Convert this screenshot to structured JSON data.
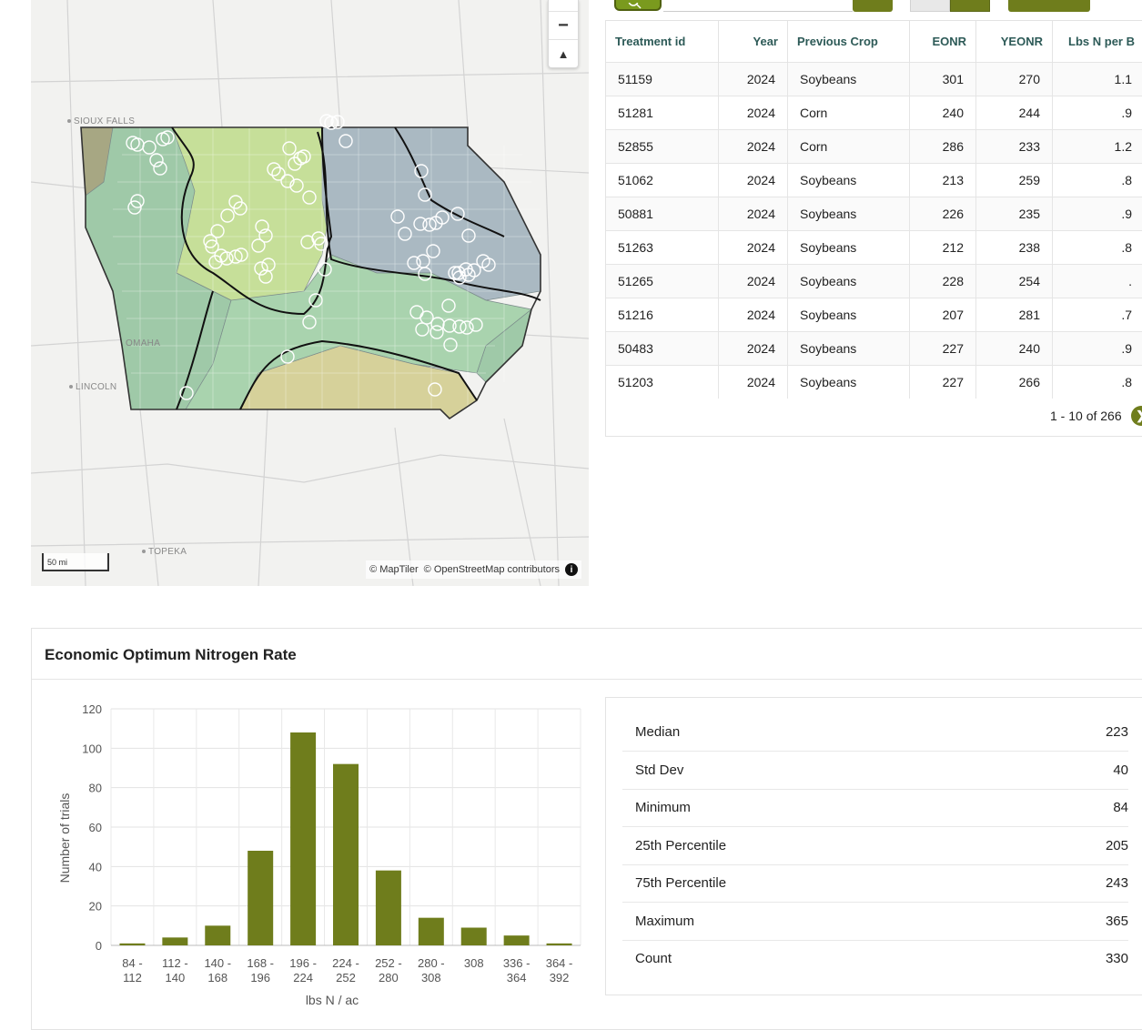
{
  "map": {
    "cities": [
      "SIOUX FALLS",
      "OMAHA",
      "LINCOLN",
      "TOPEKA"
    ],
    "scale_label": "50 mi",
    "attribution": [
      "© MapTiler",
      "© OpenStreetMap contributors"
    ],
    "zoom_out_label": "−",
    "compass_label": "▲",
    "region_colors": [
      "#9fc9a8",
      "#c6df99",
      "#aab9c2",
      "#d6d19a",
      "#a7a783"
    ],
    "marker_color": "#ffffff"
  },
  "table": {
    "columns": [
      "Treatment id",
      "Year",
      "Previous Crop",
      "EONR",
      "YEONR",
      "Lbs N per B"
    ],
    "rows": [
      [
        "51159",
        "2024",
        "Soybeans",
        "301",
        "270",
        "1.1"
      ],
      [
        "51281",
        "2024",
        "Corn",
        "240",
        "244",
        ".9"
      ],
      [
        "52855",
        "2024",
        "Corn",
        "286",
        "233",
        "1.2"
      ],
      [
        "51062",
        "2024",
        "Soybeans",
        "213",
        "259",
        ".8"
      ],
      [
        "50881",
        "2024",
        "Soybeans",
        "226",
        "235",
        ".9"
      ],
      [
        "51263",
        "2024",
        "Soybeans",
        "212",
        "238",
        ".8"
      ],
      [
        "51265",
        "2024",
        "Soybeans",
        "228",
        "254",
        "."
      ],
      [
        "51216",
        "2024",
        "Soybeans",
        "207",
        "281",
        ".7"
      ],
      [
        "50483",
        "2024",
        "Soybeans",
        "227",
        "240",
        ".9"
      ],
      [
        "51203",
        "2024",
        "Soybeans",
        "227",
        "266",
        ".8"
      ]
    ],
    "pagination": "1 - 10 of 266",
    "next_icon": "chevron-right-icon"
  },
  "eonr_panel": {
    "title": "Economic Optimum Nitrogen Rate",
    "stats": [
      {
        "label": "Median",
        "value": "223"
      },
      {
        "label": "Std Dev",
        "value": "40"
      },
      {
        "label": "Minimum",
        "value": "84"
      },
      {
        "label": "25th Percentile",
        "value": "205"
      },
      {
        "label": "75th Percentile",
        "value": "243"
      },
      {
        "label": "Maximum",
        "value": "365"
      },
      {
        "label": "Count",
        "value": "330"
      }
    ]
  },
  "chart_data": {
    "type": "bar",
    "categories": [
      [
        "84 -",
        "112"
      ],
      [
        "112 -",
        "140"
      ],
      [
        "140 -",
        "168"
      ],
      [
        "168 -",
        "196"
      ],
      [
        "196 -",
        "224"
      ],
      [
        "224 -",
        "252"
      ],
      [
        "252 -",
        "280"
      ],
      [
        "280 -",
        "308"
      ],
      [
        "308"
      ],
      [
        "336 -",
        "364"
      ],
      [
        "364 -",
        "392"
      ]
    ],
    "values": [
      1,
      4,
      10,
      48,
      108,
      92,
      38,
      14,
      9,
      5,
      1
    ],
    "title": "",
    "xlabel": "lbs N / ac",
    "ylabel": "Number of trials",
    "ylim": [
      0,
      120
    ],
    "yticks": [
      0,
      20,
      40,
      60,
      80,
      100,
      120
    ],
    "bar_color": "#6f7d1c",
    "grid": true
  }
}
